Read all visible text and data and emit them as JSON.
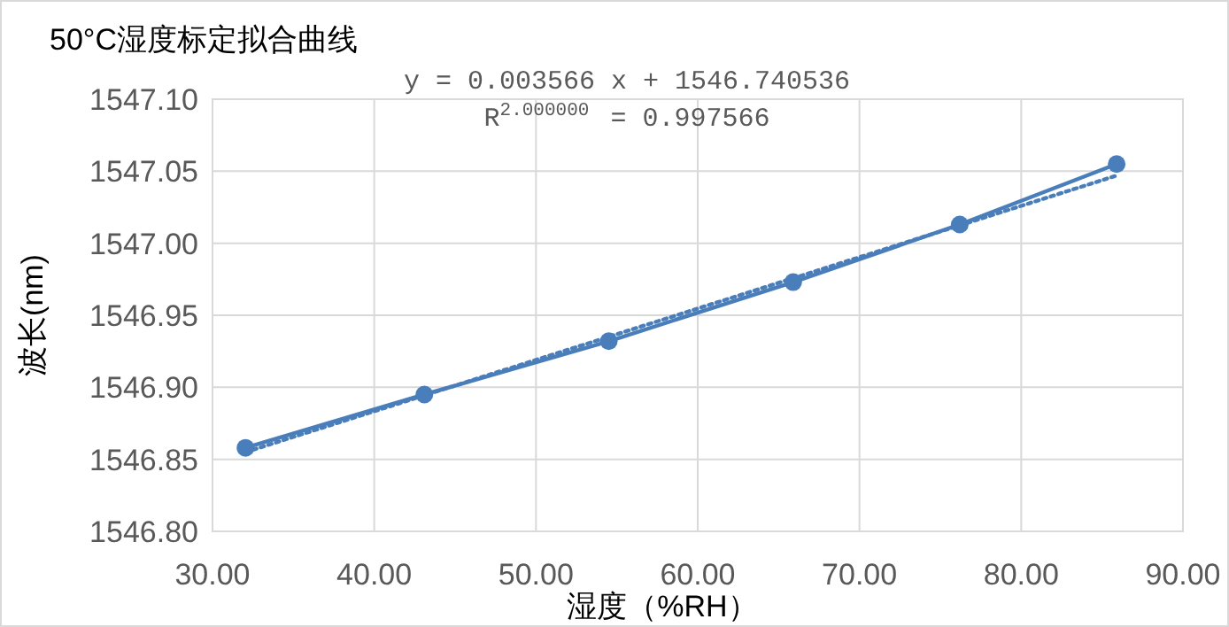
{
  "chart_data": {
    "type": "line",
    "title": "50°C湿度标定拟合曲线",
    "xlabel": "湿度（%RH）",
    "ylabel": "波长(nm)",
    "annotations": [
      "y = 0.003566 x + 1546.740536",
      "R$^{2.000000}$ = 0.997566"
    ],
    "x": [
      32.04,
      43.1,
      54.5,
      65.9,
      76.2,
      85.9
    ],
    "series": [
      {
        "color": "#4a7ebb",
        "marker": "circle",
        "line_style": "solid",
        "values": [
          1546.858,
          1546.895,
          1546.932,
          1546.973,
          1547.013,
          1547.055
        ]
      },
      {
        "color": "#4a7ebb",
        "marker": "none",
        "line_style": "dotted",
        "x": [
          32.04,
          85.9
        ],
        "values": [
          1546.855,
          1547.047
        ]
      }
    ],
    "xlim": [
      30,
      90
    ],
    "xticks": [
      {
        "value": 30,
        "label": "30.00"
      },
      {
        "value": 40,
        "label": "40.00"
      },
      {
        "value": 50,
        "label": "50.00"
      },
      {
        "value": 60,
        "label": "60.00"
      },
      {
        "value": 70,
        "label": "70.00"
      },
      {
        "value": 80,
        "label": "80.00"
      },
      {
        "value": 90,
        "label": "90.00"
      }
    ],
    "ylim": [
      1546.8,
      1547.1
    ],
    "yticks": [
      {
        "value": 1546.8,
        "label": "1546.80"
      },
      {
        "value": 1546.85,
        "label": "1546.85"
      },
      {
        "value": 1546.9,
        "label": "1546.90"
      },
      {
        "value": 1546.95,
        "label": "1546.95"
      },
      {
        "value": 1547.0,
        "label": "1547.00"
      },
      {
        "value": 1547.05,
        "label": "1547.05"
      },
      {
        "value": 1547.1,
        "label": "1547.10"
      }
    ],
    "grid": true
  }
}
